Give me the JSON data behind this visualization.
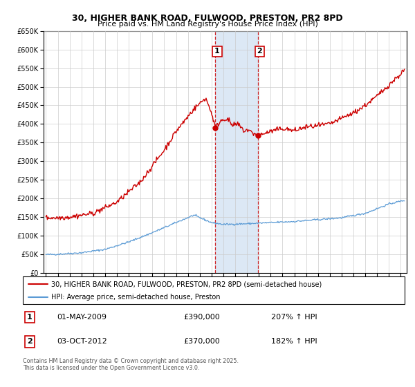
{
  "title1": "30, HIGHER BANK ROAD, FULWOOD, PRESTON, PR2 8PD",
  "title2": "Price paid vs. HM Land Registry's House Price Index (HPI)",
  "legend_line1": "30, HIGHER BANK ROAD, FULWOOD, PRESTON, PR2 8PD (semi-detached house)",
  "legend_line2": "HPI: Average price, semi-detached house, Preston",
  "sale1_label": "1",
  "sale1_date": "01-MAY-2009",
  "sale1_price": 390000,
  "sale1_hpi": "207% ↑ HPI",
  "sale2_label": "2",
  "sale2_date": "03-OCT-2012",
  "sale2_price": 370000,
  "sale2_hpi": "182% ↑ HPI",
  "copyright": "Contains HM Land Registry data © Crown copyright and database right 2025.\nThis data is licensed under the Open Government Licence v3.0.",
  "hpi_color": "#5b9bd5",
  "price_color": "#cc0000",
  "shading_color": "#dce8f5",
  "marker_box_color": "#cc0000",
  "ylim_min": 0,
  "ylim_max": 650000,
  "year_start": 1995,
  "year_end": 2025,
  "sale1_year": 2009.33,
  "sale2_year": 2012.92,
  "background_color": "#ffffff",
  "grid_color": "#cccccc"
}
